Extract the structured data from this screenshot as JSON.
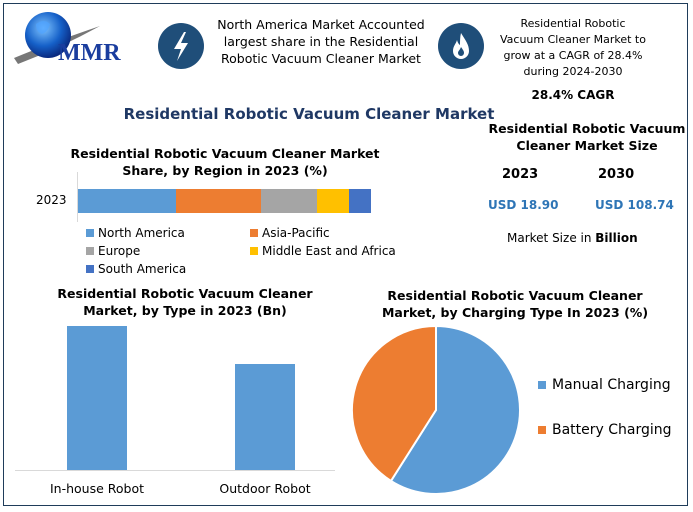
{
  "logo": {
    "text": "MMR"
  },
  "header": {
    "north_america_text": "North America Market Accounted largest share in the Residential Robotic Vacuum Cleaner Market",
    "cagr_text": "Residential Robotic Vacuum Cleaner Market to grow at a CAGR of 28.4% during 2024-2030",
    "cagr_value": "28.4% CAGR",
    "main_title": "Residential Robotic Vacuum Cleaner Market"
  },
  "icons": {
    "left": "lightning-bolt-icon",
    "right": "flame-icon"
  },
  "market_size": {
    "title": "Residential Robotic Vacuum Cleaner Market Size",
    "years": [
      "2023",
      "2030"
    ],
    "values": [
      "USD 18.90",
      "USD 108.74"
    ],
    "note_prefix": "Market Size in ",
    "note_unit": "Billion"
  },
  "colors": {
    "navy": "#1f4e79",
    "blue": "#5b9bd5",
    "orange": "#ed7d31",
    "gray": "#a5a5a5",
    "yellow": "#ffc000",
    "darkblue": "#4472c4",
    "value_blue": "#2e75b6"
  },
  "chart_data": [
    {
      "type": "bar",
      "orientation": "horizontal-stacked",
      "title": "Residential Robotic Vacuum Cleaner Market Share, by Region in 2023 (%)",
      "categories": [
        "2023"
      ],
      "series": [
        {
          "name": "North America",
          "values": [
            33.5
          ],
          "color": "#5b9bd5"
        },
        {
          "name": "Asia-Pacific",
          "values": [
            29
          ],
          "color": "#ed7d31"
        },
        {
          "name": "Europe",
          "values": [
            19
          ],
          "color": "#a5a5a5"
        },
        {
          "name": "Middle East and Africa",
          "values": [
            11
          ],
          "color": "#ffc000"
        },
        {
          "name": "South America",
          "values": [
            7.5
          ],
          "color": "#4472c4"
        }
      ],
      "xlim": [
        0,
        100
      ],
      "legend": "bottom",
      "grid": false
    },
    {
      "type": "bar",
      "title": "Residential Robotic Vacuum Cleaner Market, by Type in 2023 (Bn)",
      "categories": [
        "In-house Robot",
        "Outdoor Robot"
      ],
      "values": [
        10.9,
        8.0
      ],
      "color": "#5b9bd5",
      "grid": false
    },
    {
      "type": "pie",
      "title": "Residential Robotic Vacuum Cleaner Market, by Charging Type In 2023 (%)",
      "labels": [
        "Manual Charging",
        "Battery Charging"
      ],
      "values": [
        59,
        41
      ],
      "colors": [
        "#5b9bd5",
        "#ed7d31"
      ],
      "legend": "right"
    }
  ]
}
